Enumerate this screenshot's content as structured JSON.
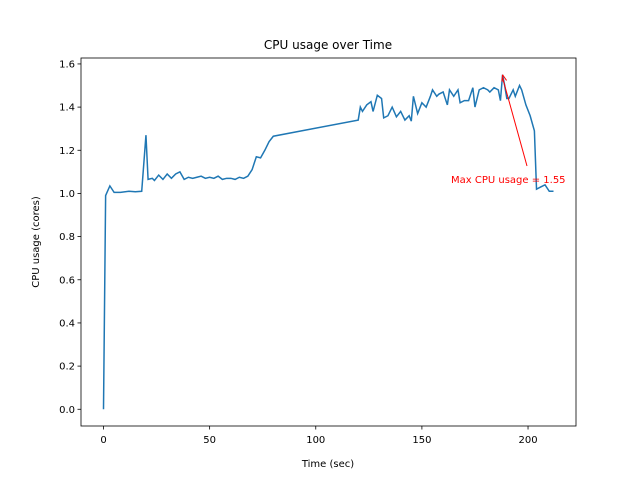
{
  "chart_data": {
    "type": "line",
    "title": "CPU usage over Time",
    "x_label": "Time (sec)",
    "y_label": "CPU usage (cores)",
    "x": [
      0,
      1,
      3,
      5,
      8,
      12,
      15,
      18,
      20,
      21,
      23,
      24,
      26,
      28,
      30,
      32,
      34,
      36,
      38,
      40,
      42,
      44,
      46,
      48,
      50,
      52,
      54,
      56,
      58,
      60,
      62,
      64,
      66,
      68,
      70,
      72,
      74,
      76,
      78,
      80,
      120,
      121,
      122,
      124,
      126,
      127,
      129,
      131,
      132,
      134,
      136,
      138,
      140,
      142,
      144,
      145,
      146,
      148,
      150,
      152,
      154,
      155,
      157,
      158,
      160,
      162,
      163,
      165,
      167,
      168,
      170,
      172,
      174,
      175,
      177,
      179,
      181,
      182,
      184,
      186,
      187,
      188,
      189,
      190,
      191,
      193,
      194,
      196,
      197,
      199,
      201,
      203,
      204,
      206,
      208,
      210,
      212
    ],
    "series": [
      {
        "name": "CPU usage",
        "color": "#1f77b4",
        "values": [
          0,
          0.99,
          1.035,
          1.005,
          1.005,
          1.01,
          1.008,
          1.01,
          1.27,
          1.065,
          1.07,
          1.06,
          1.085,
          1.065,
          1.09,
          1.07,
          1.09,
          1.1,
          1.065,
          1.075,
          1.07,
          1.075,
          1.08,
          1.07,
          1.075,
          1.07,
          1.08,
          1.065,
          1.07,
          1.07,
          1.065,
          1.075,
          1.07,
          1.08,
          1.11,
          1.17,
          1.165,
          1.2,
          1.24,
          1.265,
          1.34,
          1.4,
          1.38,
          1.41,
          1.425,
          1.38,
          1.455,
          1.44,
          1.35,
          1.36,
          1.4,
          1.355,
          1.38,
          1.34,
          1.36,
          1.335,
          1.45,
          1.37,
          1.42,
          1.4,
          1.45,
          1.48,
          1.45,
          1.46,
          1.47,
          1.41,
          1.48,
          1.45,
          1.48,
          1.42,
          1.43,
          1.43,
          1.49,
          1.4,
          1.48,
          1.49,
          1.48,
          1.47,
          1.49,
          1.48,
          1.43,
          1.55,
          1.5,
          1.44,
          1.44,
          1.48,
          1.45,
          1.5,
          1.48,
          1.41,
          1.36,
          1.29,
          1.02,
          1.03,
          1.04,
          1.01,
          1.01
        ]
      }
    ],
    "xlim": [
      -10.6,
      222.6
    ],
    "ylim": [
      -0.0775,
      1.6275
    ],
    "xticks": [
      0,
      50,
      100,
      150,
      200
    ],
    "yticks": [
      {
        "value": 0,
        "label": "0.0"
      },
      0.2,
      0.4,
      0.6,
      0.8,
      {
        "value": 1,
        "label": "1.0"
      },
      1.2,
      1.4,
      1.6
    ],
    "annotation": {
      "text": "Max CPU usage = 1.55",
      "color": "#ff0000"
    }
  }
}
